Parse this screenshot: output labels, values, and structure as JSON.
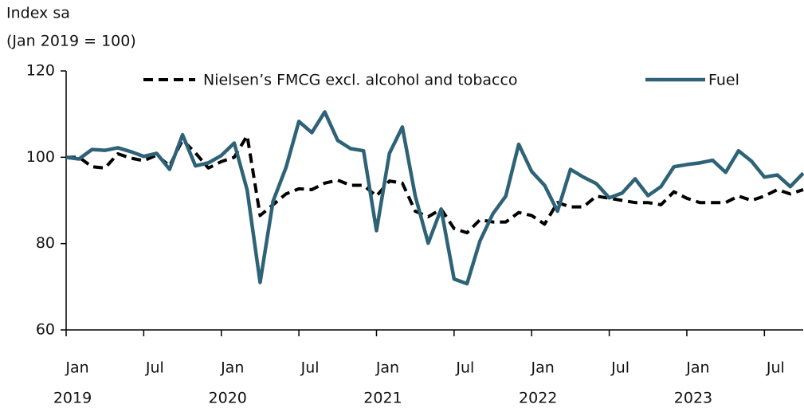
{
  "chart_data": {
    "type": "line",
    "y_label_lines": [
      "Index sa",
      "(Jan 2019 = 100)"
    ],
    "x": [
      "2019-01",
      "2019-02",
      "2019-03",
      "2019-04",
      "2019-05",
      "2019-06",
      "2019-07",
      "2019-08",
      "2019-09",
      "2019-10",
      "2019-11",
      "2019-12",
      "2020-01",
      "2020-02",
      "2020-03",
      "2020-04",
      "2020-05",
      "2020-06",
      "2020-07",
      "2020-08",
      "2020-09",
      "2020-10",
      "2020-11",
      "2020-12",
      "2021-01",
      "2021-02",
      "2021-03",
      "2021-04",
      "2021-05",
      "2021-06",
      "2021-07",
      "2021-08",
      "2021-09",
      "2021-10",
      "2021-11",
      "2021-12",
      "2022-01",
      "2022-02",
      "2022-03",
      "2022-04",
      "2022-05",
      "2022-06",
      "2022-07",
      "2022-08",
      "2022-09",
      "2022-10",
      "2022-11",
      "2022-12",
      "2023-01",
      "2023-02",
      "2023-03",
      "2023-04",
      "2023-05",
      "2023-06",
      "2023-07",
      "2023-08",
      "2023-09",
      "2023-10"
    ],
    "series": [
      {
        "name": "Nielsen’s FMCG excl. alcohol and tobacco",
        "color": "#000000",
        "dashed": true,
        "values": [
          100,
          100,
          97.8,
          97.5,
          100.8,
          99.8,
          99.2,
          100.5,
          98,
          104,
          101,
          97.5,
          99,
          100,
          105,
          86.5,
          89,
          91.5,
          92.7,
          92.5,
          94,
          94.7,
          93.5,
          93.5,
          91,
          94.5,
          94,
          87.5,
          86.2,
          88,
          83.5,
          82.5,
          85.5,
          85,
          85,
          87.2,
          86.5,
          84.5,
          89.5,
          88.5,
          88.5,
          91,
          90.5,
          90,
          89.5,
          89.5,
          89,
          92,
          90.5,
          89.5,
          89.5,
          89.5,
          91,
          90,
          91,
          92.5,
          91.5,
          92.5
        ]
      },
      {
        "name": "Fuel",
        "color": "#2e6377",
        "dashed": false,
        "values": [
          100,
          99.6,
          101.8,
          101.6,
          102.2,
          101.3,
          100.2,
          100.9,
          97.2,
          105.2,
          98,
          98.7,
          100.4,
          103.3,
          92.4,
          71,
          89.8,
          97.6,
          108.3,
          105.7,
          110.5,
          103.9,
          102,
          101.5,
          83,
          100.9,
          107,
          91,
          80.1,
          88,
          71.8,
          70.7,
          80.6,
          86.9,
          91,
          103,
          96.7,
          93.5,
          87.5,
          97.2,
          95.4,
          93.9,
          90.6,
          91.7,
          95,
          91.1,
          93.2,
          97.8,
          98.3,
          98.7,
          99.3,
          96.5,
          101.5,
          99.1,
          95.4,
          95.9,
          93.2,
          96.3
        ]
      }
    ],
    "xlim": [
      "2019-01",
      "2023-10"
    ],
    "xticks": [
      {
        "value": "2019-01",
        "label": "Jan"
      },
      {
        "value": "2019-07",
        "label": "Jul"
      },
      {
        "value": "2020-01",
        "label": "Jan"
      },
      {
        "value": "2020-07",
        "label": "Jul"
      },
      {
        "value": "2021-01",
        "label": "Jan"
      },
      {
        "value": "2021-07",
        "label": "Jul"
      },
      {
        "value": "2022-01",
        "label": "Jan"
      },
      {
        "value": "2022-07",
        "label": "Jul"
      },
      {
        "value": "2023-01",
        "label": "Jan"
      },
      {
        "value": "2023-07",
        "label": "Jul"
      }
    ],
    "xtick_years": [
      {
        "value": "2019-01",
        "label": "2019"
      },
      {
        "value": "2020-01",
        "label": "2020"
      },
      {
        "value": "2021-01",
        "label": "2021"
      },
      {
        "value": "2022-01",
        "label": "2022"
      },
      {
        "value": "2023-01",
        "label": "2023"
      }
    ],
    "ylim": [
      60,
      120
    ],
    "yticks": [
      60,
      80,
      100,
      120
    ],
    "grid": false
  }
}
